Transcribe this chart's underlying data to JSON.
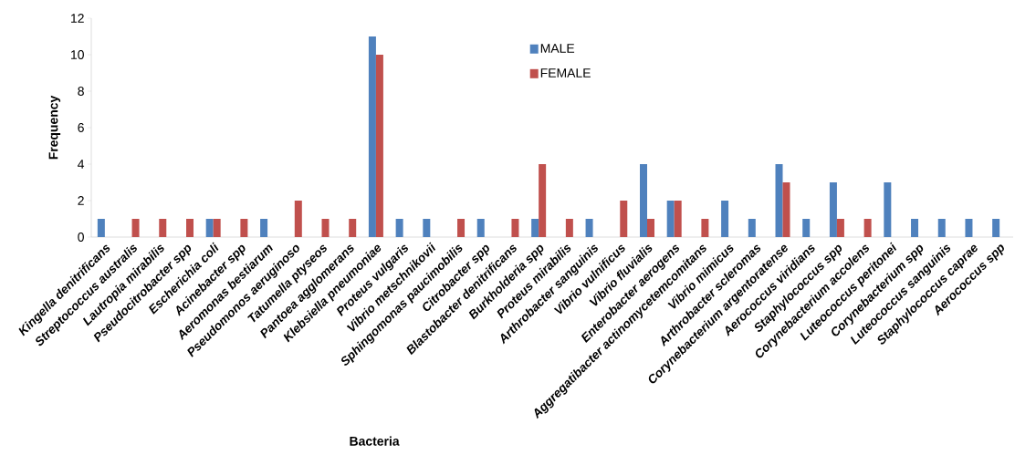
{
  "chart_data": {
    "type": "bar",
    "xlabel": "Bacteria",
    "ylabel": "Frequency",
    "categories": [
      "Kingella denitrificans",
      "Streptococcus australis",
      "Lautropia mirabilis",
      "Pseudocitrobacter spp",
      "Escherichia coli",
      "Acinebacter spp",
      "Aeromonas bestiarum",
      "Pseudomonos aeruginoso",
      "Tatumella ptyseos",
      "Pantoea agglomerans",
      "Klebsiella pneumoniae",
      "Proteus vulgaris",
      "Vibrio metschnikovii",
      "Sphingomonas paucimobilis",
      "Citrobacter spp",
      "Blastobacter denitrificans",
      "Burkholderia spp",
      "Proteus mirabilis",
      "Arthrobacter sanguinis",
      "Vibrio vulnificus",
      "Vibrio fluvialis",
      "Enterobacter aerogens",
      "Aggregatibacter actinomycetemcomitans",
      "Vibrio mimicus",
      "Arthrobacter scleromas",
      "Corynebacterium argentoratense",
      "Aerococcus viridians",
      "Staphylococcus spp",
      "Corynebacterium accolens",
      "Luteococcus peritonei",
      "Corynebacterium spp",
      "Luteococcus sanguinis",
      "Staphylococcus caprae",
      "Aerococcus spp"
    ],
    "series": [
      {
        "name": "MALE",
        "color": "#4f81bd",
        "values": [
          1,
          0,
          0,
          0,
          1,
          0,
          1,
          0,
          0,
          0,
          11,
          1,
          1,
          0,
          1,
          0,
          1,
          0,
          1,
          0,
          4,
          2,
          0,
          2,
          1,
          4,
          1,
          3,
          0,
          3,
          1,
          1,
          1,
          1
        ]
      },
      {
        "name": "FEMALE",
        "color": "#c0504d",
        "values": [
          0,
          1,
          1,
          1,
          1,
          1,
          0,
          2,
          1,
          1,
          10,
          0,
          0,
          1,
          0,
          1,
          4,
          1,
          0,
          2,
          1,
          2,
          1,
          0,
          0,
          3,
          0,
          1,
          1,
          0,
          0,
          0,
          0,
          0
        ]
      }
    ],
    "ylim": [
      0,
      12
    ],
    "yticks": [
      0,
      2,
      4,
      6,
      8,
      10,
      12
    ],
    "grid": false,
    "legend": "top"
  }
}
